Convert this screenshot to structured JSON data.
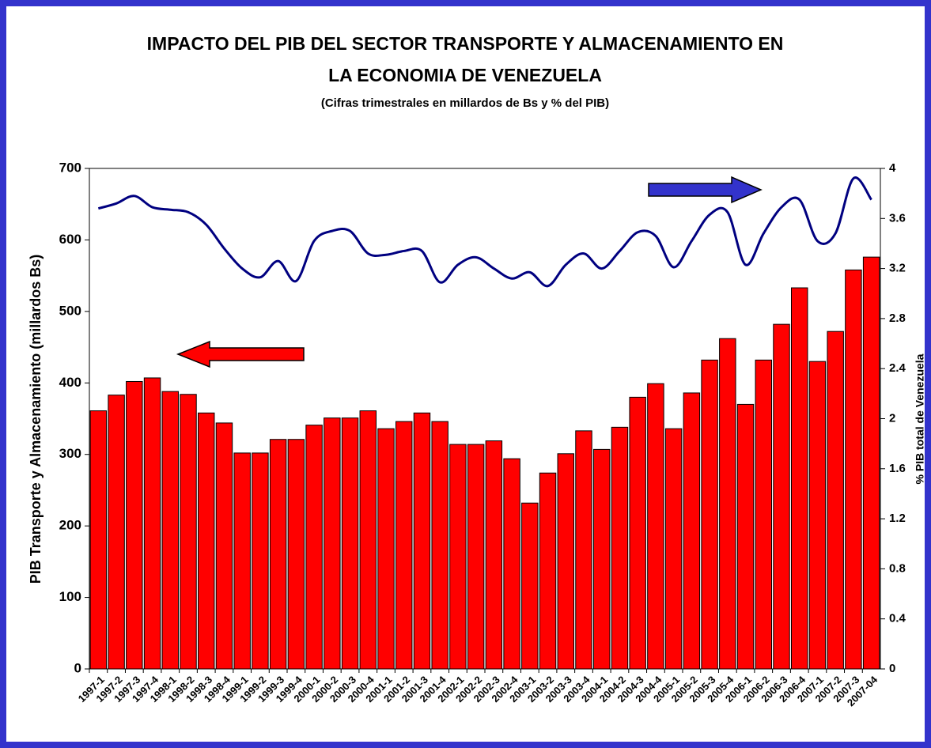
{
  "chart_data": {
    "type": "bar-line",
    "title": "IMPACTO DEL PIB DEL SECTOR TRANSPORTE Y ALMACENAMIENTO EN",
    "title2": "LA ECONOMIA DE VENEZUELA",
    "subtitle": "(Cifras trimestrales en millardos de Bs y % del PIB)",
    "ylabel": "PIB Transporte y Almacenamiento (millardos Bs)",
    "y2label": "% PIB total de Venezuela",
    "categories": [
      "1997-1",
      "1997-2",
      "1997-3",
      "1997-4",
      "1998-1",
      "1998-2",
      "1998-3",
      "1998-4",
      "1999-1",
      "1999-2",
      "1999-3",
      "1999-4",
      "2000-1",
      "2000-2",
      "2000-3",
      "2000-4",
      "2001-1",
      "2001-2",
      "2001-3",
      "2001-4",
      "2002-1",
      "2002-2",
      "2002-3",
      "2002-4",
      "2003-1",
      "2003-2",
      "2003-3",
      "2003-4",
      "2004-1",
      "2004-2",
      "2004-3",
      "2004-4",
      "2005-1",
      "2005-2",
      "2005-3",
      "2005-4",
      "2006-1",
      "2006-2",
      "2006-3",
      "2006-4",
      "2007-1",
      "2007-2",
      "2007-3",
      "2007-04"
    ],
    "series": [
      {
        "color": "#ff0000",
        "values": [
          361,
          383,
          402,
          407,
          388,
          384,
          358,
          344,
          302,
          302,
          321,
          321,
          341,
          351,
          351,
          361,
          336,
          346,
          358,
          346,
          314,
          314,
          319,
          294,
          232,
          274,
          301,
          333,
          307,
          338,
          380,
          399,
          336,
          386,
          432,
          462,
          370,
          432,
          482,
          533,
          430,
          472,
          558,
          576
        ]
      },
      {
        "color": "#000080",
        "axis": "y2",
        "values": [
          3.68,
          3.72,
          3.78,
          3.69,
          3.67,
          3.65,
          3.55,
          3.36,
          3.2,
          3.13,
          3.26,
          3.1,
          3.42,
          3.5,
          3.5,
          3.32,
          3.31,
          3.34,
          3.34,
          3.09,
          3.23,
          3.29,
          3.2,
          3.12,
          3.17,
          3.06,
          3.23,
          3.32,
          3.2,
          3.34,
          3.49,
          3.46,
          3.21,
          3.42,
          3.63,
          3.65,
          3.23,
          3.48,
          3.69,
          3.75,
          3.42,
          3.48,
          3.92,
          3.75
        ]
      }
    ],
    "ylim": [
      0,
      700
    ],
    "yticks": [
      0,
      100,
      200,
      300,
      400,
      500,
      600,
      700
    ],
    "y2lim": [
      0,
      4
    ],
    "y2ticks": [
      0,
      0.4,
      0.8,
      1.2,
      1.6,
      2,
      2.4,
      2.8,
      3.2,
      3.6,
      4
    ]
  }
}
